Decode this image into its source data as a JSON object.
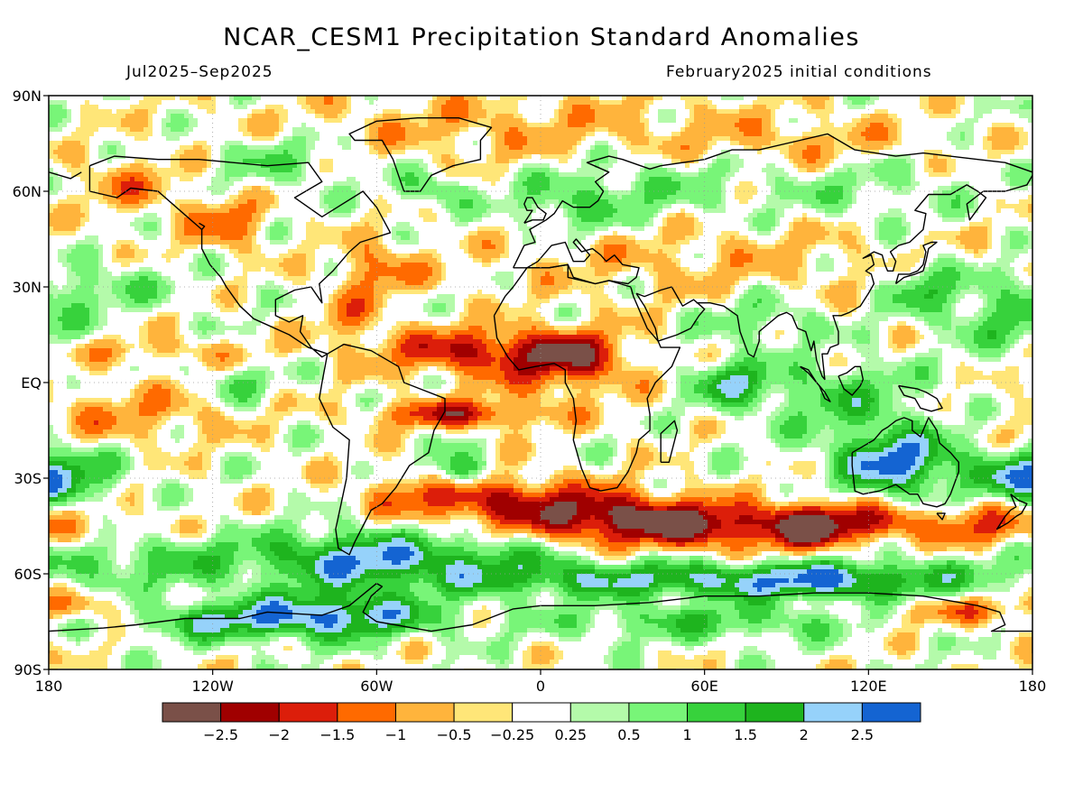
{
  "header": {
    "title": "NCAR_CESM1 Precipitation Standard Anomalies",
    "period": "Jul2025–Sep2025",
    "init": "February2025 initial conditions"
  },
  "map": {
    "projection": "equirectangular",
    "lon_range": [
      -180,
      180
    ],
    "lat_range": [
      -90,
      90
    ],
    "lat_ticks": [
      "90N",
      "60N",
      "30N",
      "EQ",
      "30S",
      "60S",
      "90S"
    ],
    "lon_ticks": [
      "180",
      "120W",
      "60W",
      "0",
      "60E",
      "120E",
      "180"
    ],
    "grid": "dotted at 30-degree intervals",
    "coastlines": "black outlines"
  },
  "colorbar": {
    "colors": [
      "#7a5048",
      "#a00000",
      "#dc1e0a",
      "#ff6a00",
      "#ffb43c",
      "#ffe678",
      "#ffffff",
      "#b4faaa",
      "#78f578",
      "#37d23c",
      "#1eb41e",
      "#96d2fa",
      "#1464d2"
    ],
    "labels": [
      "−2.5",
      "−2",
      "−1.5",
      "−1",
      "−0.5",
      "−0.25",
      "0.25",
      "0.5",
      "1",
      "1.5",
      "2",
      "2.5"
    ]
  },
  "chart_data": {
    "type": "heatmap",
    "title": "NCAR_CESM1 Precipitation Standard Anomalies",
    "subtitle": "Jul2025–Sep2025",
    "note": "February2025 initial conditions",
    "x_range": [
      -180,
      180
    ],
    "y_range": [
      -90,
      90
    ],
    "levels": [
      -2.5,
      -2,
      -1.5,
      -1,
      -0.5,
      -0.25,
      0.25,
      0.5,
      1,
      1.5,
      2,
      2.5
    ],
    "features": [
      {
        "region": "Southern Ocean band 35S-50S, 30W-140E",
        "value_range": [
          -2.5,
          -1.5
        ]
      },
      {
        "region": "Tropical Atlantic / Sahel 5N-15N",
        "value_range": [
          -2,
          -1
        ]
      },
      {
        "region": "Equatorial South Atlantic 10S",
        "value_range": [
          -2,
          -1.5
        ]
      },
      {
        "region": "Australia interior",
        "value_range": [
          2,
          2.5
        ]
      },
      {
        "region": "Antarctica near 60W-120W",
        "value_range": [
          2,
          2.5
        ]
      },
      {
        "region": "South Pacific 30S 180",
        "value_range": [
          2,
          2.5
        ]
      },
      {
        "region": "Eastern Pacific equatorial",
        "value_range": [
          -0.5,
          -0.25
        ]
      },
      {
        "region": "Southern Ocean 55S-65S",
        "value_range": [
          1,
          2
        ]
      }
    ]
  }
}
